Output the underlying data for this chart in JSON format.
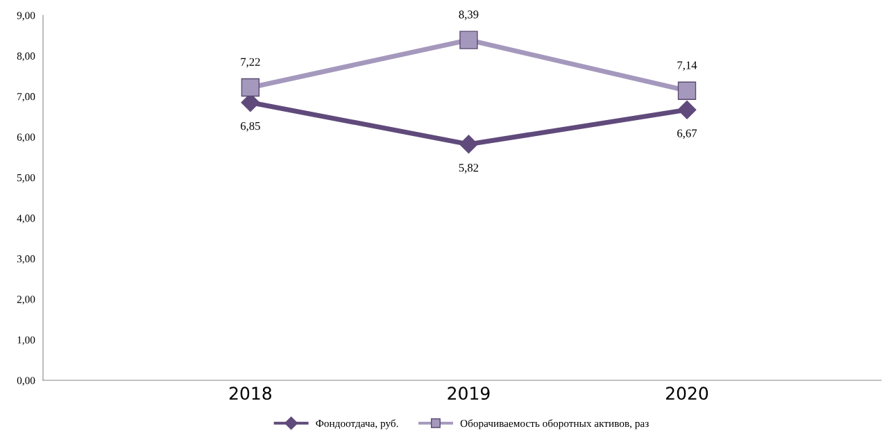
{
  "chart_data": {
    "type": "line",
    "categories": [
      "2018",
      "2019",
      "2020"
    ],
    "series": [
      {
        "name": "Фондоотдача, руб.",
        "color": "#604a7b",
        "marker": "diamond",
        "values": [
          6.85,
          5.82,
          6.67
        ],
        "value_labels": [
          "6,85",
          "5,82",
          "6,67"
        ]
      },
      {
        "name": "Оборачиваемость оборотных активов, раз",
        "color": "#a598bd",
        "marker": "square",
        "values": [
          7.22,
          8.39,
          7.14
        ],
        "value_labels": [
          "7,22",
          "8,39",
          "7,14"
        ]
      }
    ],
    "ylim": [
      0,
      9
    ],
    "yticks": [
      {
        "value": 0,
        "label": "0,00"
      },
      {
        "value": 1,
        "label": "1,00"
      },
      {
        "value": 2,
        "label": "2,00"
      },
      {
        "value": 3,
        "label": "3,00"
      },
      {
        "value": 4,
        "label": "4,00"
      },
      {
        "value": 5,
        "label": "5,00"
      },
      {
        "value": 6,
        "label": "6,00"
      },
      {
        "value": 7,
        "label": "7,00"
      },
      {
        "value": 8,
        "label": "8,00"
      },
      {
        "value": 9,
        "label": "9,00"
      }
    ],
    "grid": false,
    "legend": "bottom",
    "line_style": "solid"
  }
}
